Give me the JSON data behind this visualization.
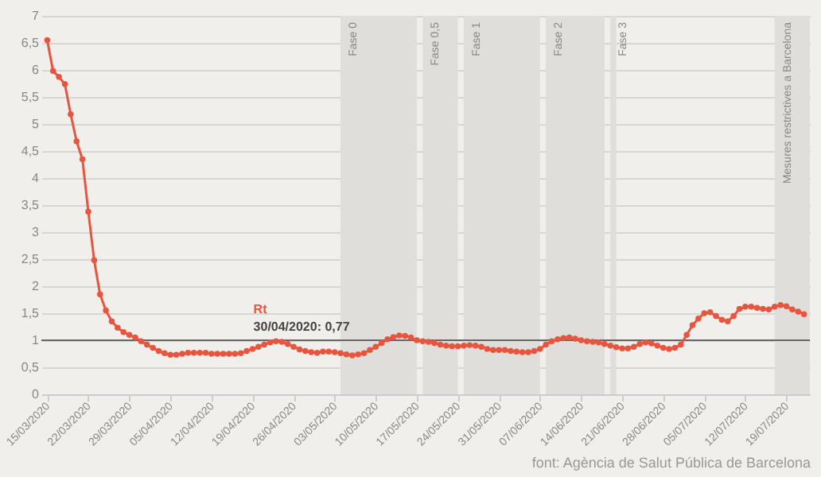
{
  "chart_data": {
    "type": "line",
    "x": [
      "2020-03-15",
      "2020-03-16",
      "2020-03-17",
      "2020-03-18",
      "2020-03-19",
      "2020-03-20",
      "2020-03-21",
      "2020-03-22",
      "2020-03-23",
      "2020-03-24",
      "2020-03-25",
      "2020-03-26",
      "2020-03-27",
      "2020-03-28",
      "2020-03-29",
      "2020-03-30",
      "2020-03-31",
      "2020-04-01",
      "2020-04-02",
      "2020-04-03",
      "2020-04-04",
      "2020-04-05",
      "2020-04-06",
      "2020-04-07",
      "2020-04-08",
      "2020-04-09",
      "2020-04-10",
      "2020-04-11",
      "2020-04-12",
      "2020-04-13",
      "2020-04-14",
      "2020-04-15",
      "2020-04-16",
      "2020-04-17",
      "2020-04-18",
      "2020-04-19",
      "2020-04-20",
      "2020-04-21",
      "2020-04-22",
      "2020-04-23",
      "2020-04-24",
      "2020-04-25",
      "2020-04-26",
      "2020-04-27",
      "2020-04-28",
      "2020-04-29",
      "2020-04-30",
      "2020-05-01",
      "2020-05-02",
      "2020-05-03",
      "2020-05-04",
      "2020-05-05",
      "2020-05-06",
      "2020-05-07",
      "2020-05-08",
      "2020-05-09",
      "2020-05-10",
      "2020-05-11",
      "2020-05-12",
      "2020-05-13",
      "2020-05-14",
      "2020-05-15",
      "2020-05-16",
      "2020-05-17",
      "2020-05-18",
      "2020-05-19",
      "2020-05-20",
      "2020-05-21",
      "2020-05-22",
      "2020-05-23",
      "2020-05-24",
      "2020-05-25",
      "2020-05-26",
      "2020-05-27",
      "2020-05-28",
      "2020-05-29",
      "2020-05-30",
      "2020-05-31",
      "2020-06-01",
      "2020-06-02",
      "2020-06-03",
      "2020-06-04",
      "2020-06-05",
      "2020-06-06",
      "2020-06-07",
      "2020-06-08",
      "2020-06-09",
      "2020-06-10",
      "2020-06-11",
      "2020-06-12",
      "2020-06-13",
      "2020-06-14",
      "2020-06-15",
      "2020-06-16",
      "2020-06-17",
      "2020-06-18",
      "2020-06-19",
      "2020-06-20",
      "2020-06-21",
      "2020-06-22",
      "2020-06-23",
      "2020-06-24",
      "2020-06-25",
      "2020-06-26",
      "2020-06-27",
      "2020-06-28",
      "2020-06-29",
      "2020-06-30",
      "2020-07-01",
      "2020-07-02",
      "2020-07-03",
      "2020-07-04",
      "2020-07-05",
      "2020-07-06",
      "2020-07-07",
      "2020-07-08",
      "2020-07-09",
      "2020-07-10",
      "2020-07-11",
      "2020-07-12",
      "2020-07-13",
      "2020-07-14",
      "2020-07-15",
      "2020-07-16",
      "2020-07-17",
      "2020-07-18",
      "2020-07-19",
      "2020-07-20",
      "2020-07-21",
      "2020-07-22"
    ],
    "series": [
      {
        "color": "#e8553f",
        "values": [
          6.55,
          5.98,
          5.87,
          5.74,
          5.18,
          4.68,
          4.35,
          3.38,
          2.48,
          1.85,
          1.55,
          1.35,
          1.23,
          1.15,
          1.1,
          1.05,
          0.98,
          0.92,
          0.86,
          0.8,
          0.76,
          0.73,
          0.73,
          0.75,
          0.77,
          0.77,
          0.77,
          0.77,
          0.75,
          0.75,
          0.75,
          0.75,
          0.75,
          0.76,
          0.8,
          0.84,
          0.88,
          0.92,
          0.96,
          0.98,
          0.97,
          0.93,
          0.88,
          0.83,
          0.8,
          0.78,
          0.77,
          0.79,
          0.79,
          0.78,
          0.76,
          0.74,
          0.72,
          0.74,
          0.76,
          0.82,
          0.88,
          0.95,
          1.02,
          1.06,
          1.09,
          1.08,
          1.05,
          1.0,
          0.98,
          0.97,
          0.95,
          0.92,
          0.9,
          0.89,
          0.89,
          0.9,
          0.91,
          0.9,
          0.88,
          0.84,
          0.82,
          0.82,
          0.82,
          0.8,
          0.79,
          0.78,
          0.78,
          0.8,
          0.84,
          0.92,
          0.98,
          1.02,
          1.04,
          1.05,
          1.03,
          1.0,
          0.98,
          0.97,
          0.96,
          0.93,
          0.9,
          0.87,
          0.85,
          0.85,
          0.88,
          0.93,
          0.96,
          0.94,
          0.9,
          0.86,
          0.84,
          0.86,
          0.92,
          1.1,
          1.28,
          1.4,
          1.5,
          1.52,
          1.45,
          1.38,
          1.35,
          1.45,
          1.58,
          1.62,
          1.62,
          1.6,
          1.58,
          1.57,
          1.62,
          1.65,
          1.63,
          1.57,
          1.53,
          1.48
        ]
      }
    ],
    "xlim": [
      "2020-03-14",
      "2020-07-23"
    ],
    "xticks": [
      {
        "value": "2020-03-15",
        "label": "15/03/2020"
      },
      {
        "value": "2020-03-22",
        "label": "22/03/2020"
      },
      {
        "value": "2020-03-29",
        "label": "29/03/2020"
      },
      {
        "value": "2020-04-05",
        "label": "05/04/2020"
      },
      {
        "value": "2020-04-12",
        "label": "12/04/2020"
      },
      {
        "value": "2020-04-19",
        "label": "19/04/2020"
      },
      {
        "value": "2020-04-26",
        "label": "26/04/2020"
      },
      {
        "value": "2020-05-03",
        "label": "03/05/2020"
      },
      {
        "value": "2020-05-10",
        "label": "10/05/2020"
      },
      {
        "value": "2020-05-17",
        "label": "17/05/2020"
      },
      {
        "value": "2020-05-24",
        "label": "24/05/2020"
      },
      {
        "value": "2020-05-31",
        "label": "31/05/2020"
      },
      {
        "value": "2020-06-07",
        "label": "07/06/2020"
      },
      {
        "value": "2020-06-14",
        "label": "14/06/2020"
      },
      {
        "value": "2020-06-21",
        "label": "21/06/2020"
      },
      {
        "value": "2020-06-28",
        "label": "28/06/2020"
      },
      {
        "value": "2020-07-05",
        "label": "05/07/2020"
      },
      {
        "value": "2020-07-12",
        "label": "12/07/2020"
      },
      {
        "value": "2020-07-19",
        "label": "19/07/2020"
      }
    ],
    "ylim": [
      0,
      7
    ],
    "yticks": [
      0,
      {
        "value": 0.5,
        "label": "0,5"
      },
      1,
      {
        "value": 1.5,
        "label": "1,5"
      },
      2,
      {
        "value": 2.5,
        "label": "2,5"
      },
      3,
      {
        "value": 3.5,
        "label": "3,5"
      },
      4,
      {
        "value": 4.5,
        "label": "4,5"
      },
      5,
      {
        "value": 5.5,
        "label": "5,5"
      },
      6,
      {
        "value": 6.5,
        "label": "6,5"
      },
      7
    ],
    "grid": "y",
    "marker": "circle",
    "line_style": "solid",
    "ref_lines": [
      {
        "axis": "y",
        "value": 1,
        "color": "#666666"
      }
    ],
    "bands": [
      {
        "axis": "x",
        "from": "2020-05-04",
        "to": "2020-05-17",
        "label": "Fase 0",
        "color": "#dfdedb"
      },
      {
        "axis": "x",
        "from": "2020-05-18",
        "to": "2020-05-24",
        "label": "Fase 0,5",
        "color": "#dfdedb"
      },
      {
        "axis": "x",
        "from": "2020-05-25",
        "to": "2020-06-07",
        "label": "Fase 1",
        "color": "#dfdedb"
      },
      {
        "axis": "x",
        "from": "2020-06-08",
        "to": "2020-06-18",
        "label": "Fase 2",
        "color": "#dfdedb"
      },
      {
        "axis": "x",
        "from": "2020-06-19",
        "to": "2020-06-20",
        "label": "Fase 3",
        "color": "#dfdedb"
      },
      {
        "axis": "x",
        "from": "2020-07-17",
        "to": "2020-07-23",
        "label": "Mesures restrictives a Barcelona",
        "color": "#dfdedb"
      }
    ],
    "annotations": [
      {
        "text": "Rt\n30/04/2020: 0,77",
        "x": "2020-04-30",
        "y": 0.77
      },
      "font: Agència de Salut Pública de Barcelona"
    ]
  }
}
